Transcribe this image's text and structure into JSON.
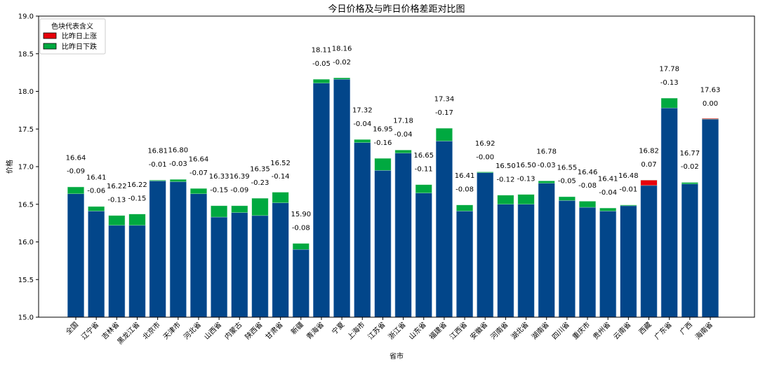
{
  "chart_data": {
    "type": "bar",
    "stacked": true,
    "title": "今日价格及与昨日价格差距对比图",
    "xlabel": "省市",
    "ylabel": "价格",
    "ylim": [
      15.0,
      19.0
    ],
    "yticks": [
      "15.0",
      "15.5",
      "16.0",
      "16.5",
      "17.0",
      "17.5",
      "18.0",
      "18.5",
      "19.0"
    ],
    "grid": false,
    "legend": {
      "title": "色块代表含义",
      "placement": "top-left",
      "entries": [
        {
          "label": "比昨日上涨",
          "color": "#e8000b"
        },
        {
          "label": "比昨日下跌",
          "color": "#00a940"
        }
      ]
    },
    "colors": {
      "today": "#02468a",
      "up": "#e8000b",
      "down": "#00a940"
    },
    "categories": [
      "全国",
      "辽宁省",
      "吉林省",
      "黑龙江省",
      "北京市",
      "天津市",
      "河北省",
      "山西省",
      "内蒙古",
      "陕西省",
      "甘肃省",
      "新疆",
      "青海省",
      "宁夏",
      "上海市",
      "江苏省",
      "浙江省",
      "山东省",
      "福建省",
      "江西省",
      "安徽省",
      "河南省",
      "湖北省",
      "湖南省",
      "四川省",
      "重庆市",
      "贵州省",
      "云南省",
      "西藏",
      "广东省",
      "广西",
      "海南省"
    ],
    "today_price": [
      16.64,
      16.41,
      16.22,
      16.22,
      16.81,
      16.8,
      16.64,
      16.33,
      16.39,
      16.35,
      16.52,
      15.9,
      18.11,
      18.16,
      17.32,
      16.95,
      17.18,
      16.65,
      17.34,
      16.41,
      16.92,
      16.5,
      16.5,
      16.78,
      16.55,
      16.46,
      16.41,
      16.48,
      16.82,
      17.78,
      16.77,
      17.63
    ],
    "today_labels": [
      "16.64",
      "16.41",
      "16.22",
      "16.22",
      "16.81",
      "16.80",
      "16.64",
      "16.33",
      "16.39",
      "16.35",
      "16.52",
      "15.90",
      "18.11",
      "18.16",
      "17.32",
      "16.95",
      "17.18",
      "16.65",
      "17.34",
      "16.41",
      "16.92",
      "16.50",
      "16.50",
      "16.78",
      "16.55",
      "16.46",
      "16.41",
      "16.48",
      "16.82",
      "17.78",
      "16.77",
      "17.63"
    ],
    "diff": [
      -0.09,
      -0.06,
      -0.13,
      -0.15,
      -0.01,
      -0.03,
      -0.07,
      -0.15,
      -0.09,
      -0.23,
      -0.14,
      -0.08,
      -0.05,
      -0.02,
      -0.04,
      -0.16,
      -0.04,
      -0.11,
      -0.17,
      -0.08,
      -0.0,
      -0.12,
      -0.13,
      -0.03,
      -0.05,
      -0.08,
      -0.04,
      -0.01,
      0.07,
      -0.13,
      -0.02,
      0.0
    ],
    "diff_labels": [
      "-0.09",
      "-0.06",
      "-0.13",
      "-0.15",
      "-0.01",
      "-0.03",
      "-0.07",
      "-0.15",
      "-0.09",
      "-0.23",
      "-0.14",
      "-0.08",
      "-0.05",
      "-0.02",
      "-0.04",
      "-0.16",
      "-0.04",
      "-0.11",
      "-0.17",
      "-0.08",
      "-0.00",
      "-0.12",
      "-0.13",
      "-0.03",
      "-0.05",
      "-0.08",
      "-0.04",
      "-0.01",
      "0.07",
      "-0.13",
      "-0.02",
      "0.00"
    ]
  }
}
